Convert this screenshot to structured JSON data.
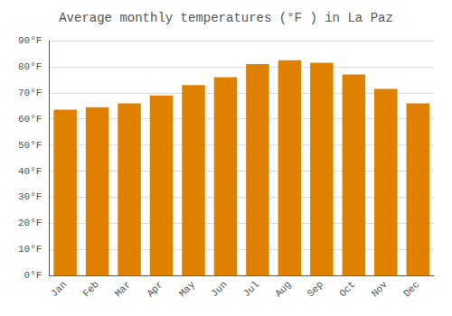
{
  "chart_data": {
    "type": "bar",
    "title": "Average monthly temperatures (°F ) in La Paz",
    "categories": [
      "Jan",
      "Feb",
      "Mar",
      "Apr",
      "May",
      "Jun",
      "Jul",
      "Aug",
      "Sep",
      "Oct",
      "Nov",
      "Dec"
    ],
    "values": [
      63.5,
      64.5,
      66.0,
      69.0,
      73.0,
      76.0,
      81.0,
      82.5,
      81.5,
      77.0,
      71.5,
      66.0
    ],
    "color": "#E08000",
    "ylim": [
      0,
      90
    ],
    "yticks": [
      {
        "value": 0,
        "label": "0°F"
      },
      {
        "value": 10,
        "label": "10°F"
      },
      {
        "value": 20,
        "label": "20°F"
      },
      {
        "value": 30,
        "label": "30°F"
      },
      {
        "value": 40,
        "label": "40°F"
      },
      {
        "value": 50,
        "label": "50°F"
      },
      {
        "value": 60,
        "label": "60°F"
      },
      {
        "value": 70,
        "label": "70°F"
      },
      {
        "value": 80,
        "label": "80°F"
      },
      {
        "value": 90,
        "label": "90°F"
      }
    ],
    "grid": true
  }
}
